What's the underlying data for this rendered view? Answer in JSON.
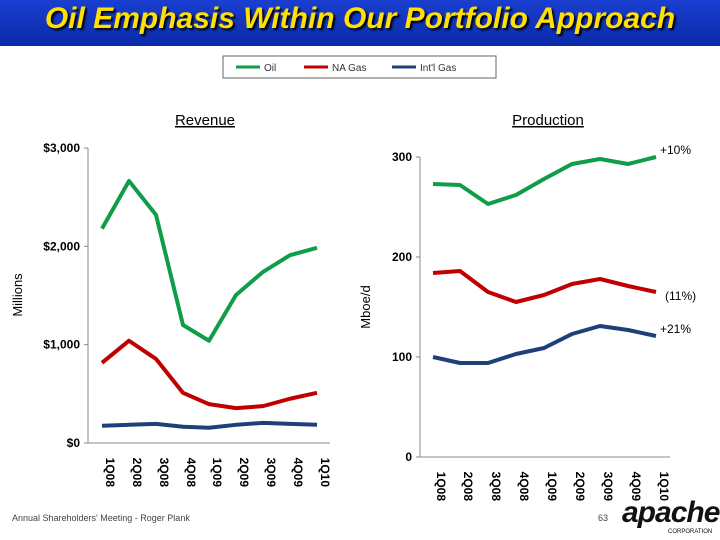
{
  "title": "Oil Emphasis Within Our Portfolio Approach",
  "footer": "Annual Shareholders' Meeting - Roger Plank",
  "page_number": "63",
  "logo": {
    "text": "apache",
    "sub": "CORPORATION"
  },
  "colors": {
    "Oil": "#0f9d48",
    "NA Gas": "#c00000",
    "Int'l Gas": "#1f3f7a"
  },
  "legend": [
    "Oil",
    "NA Gas",
    "Int'l Gas"
  ],
  "chart_data": [
    {
      "type": "line",
      "title": "Revenue",
      "ylabel": "Millions",
      "ylim": [
        0,
        3000
      ],
      "yticks": [
        "$0",
        "$1,000",
        "$2,000",
        "$3,000"
      ],
      "categories": [
        "1Q08",
        "2Q08",
        "3Q08",
        "4Q08",
        "1Q09",
        "2Q09",
        "3Q09",
        "4Q09",
        "1Q10"
      ],
      "series": [
        {
          "name": "Oil",
          "values": [
            2180,
            2665,
            2320,
            1200,
            1040,
            1505,
            1740,
            1910,
            1985
          ]
        },
        {
          "name": "NA Gas",
          "values": [
            815,
            1040,
            855,
            510,
            395,
            355,
            375,
            450,
            510
          ]
        },
        {
          "name": "Int'l Gas",
          "values": [
            175,
            185,
            195,
            165,
            155,
            185,
            205,
            195,
            185
          ]
        }
      ]
    },
    {
      "type": "line",
      "title": "Production",
      "ylabel": "Mboe/d",
      "ylim": [
        0,
        300
      ],
      "yticks": [
        "0",
        "100",
        "200",
        "300"
      ],
      "categories": [
        "1Q08",
        "2Q08",
        "3Q08",
        "4Q08",
        "1Q09",
        "2Q09",
        "3Q09",
        "4Q09",
        "1Q10"
      ],
      "series": [
        {
          "name": "Oil",
          "values": [
            273,
            272,
            253,
            262,
            278,
            293,
            298,
            293,
            300
          ]
        },
        {
          "name": "NA Gas",
          "values": [
            184,
            186,
            165,
            155,
            162,
            173,
            178,
            171,
            165
          ]
        },
        {
          "name": "Int'l Gas",
          "values": [
            100,
            94,
            94,
            103,
            109,
            123,
            131,
            127,
            121
          ]
        }
      ],
      "annotations": [
        "+10%",
        "(11%)",
        "+21%"
      ]
    }
  ]
}
